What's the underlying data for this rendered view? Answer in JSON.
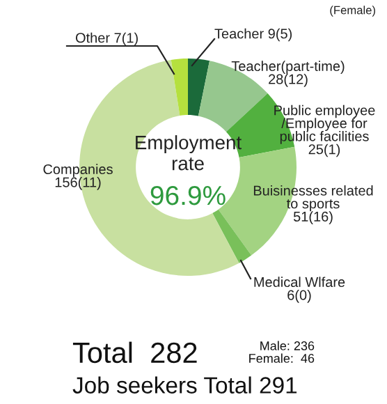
{
  "chart_data": {
    "type": "donut",
    "title": "Employment\nrate",
    "categories": [
      "Teacher",
      "Teacher(part-time)",
      "Public employee\n/Employee for\npublic facilities",
      "Buisinesses related\nto sports",
      "Medical Wlfare",
      "Companies",
      "Other"
    ],
    "values": [
      9,
      28,
      25,
      51,
      6,
      156,
      7
    ],
    "value_labels": [
      "9(5)",
      "28(12)",
      "25(1)",
      "51(16)",
      "6(0)",
      "156(11)",
      "7(1)"
    ],
    "colors": [
      "#1b6a3a",
      "#96c78e",
      "#52b03f",
      "#a3d382",
      "#79c05a",
      "#c8e0a0",
      "#b5e03e"
    ],
    "annotations": [
      "96.9%",
      "(Female)",
      "Total  282",
      "Male: 236",
      "Female:  46",
      "Job seekers Total 291"
    ]
  }
}
